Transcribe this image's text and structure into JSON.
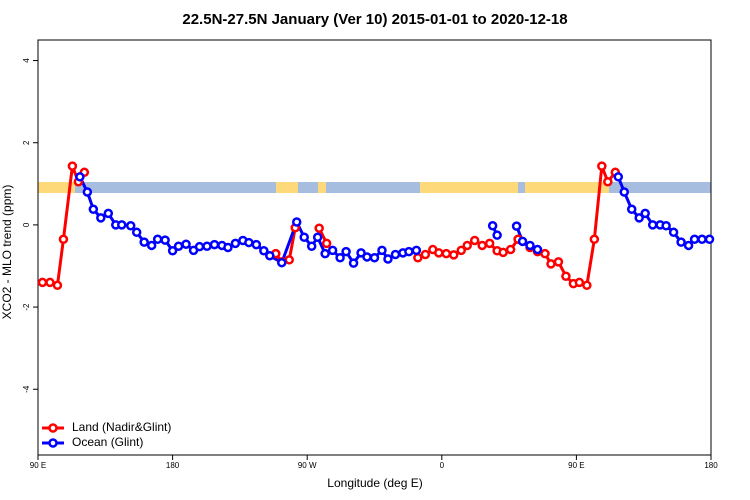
{
  "chart_data": {
    "type": "line",
    "title": "22.5N-27.5N January (Ver 10)   2015-01-01 to 2020-12-18",
    "x_label": "Longitude (deg E)",
    "y_label": "XCO2 - MLO trend (ppm)",
    "xlim": [
      90,
      540
    ],
    "xticks": [
      {
        "value": 90,
        "label": "90 E"
      },
      180,
      {
        "value": 270,
        "label": "90 W"
      },
      {
        "value": 360,
        "label": "0"
      },
      {
        "value": 450,
        "label": "90 E"
      },
      {
        "value": 540,
        "label": "180"
      }
    ],
    "ylim": [
      -5.6,
      4.5
    ],
    "yticks": [
      -4,
      -2,
      0,
      2,
      4
    ],
    "legend": "bottomleft",
    "series": [
      {
        "name": "Land (Nadir&Glint)",
        "color": "#ff0000",
        "x": [
          93,
          98,
          103,
          107,
          113,
          117,
          121,
          180,
          249,
          253,
          258,
          262,
          270,
          278,
          283,
          312,
          344,
          349,
          354,
          358,
          363,
          368,
          373,
          377,
          382,
          387,
          392,
          397,
          401,
          406,
          411,
          419,
          424,
          429,
          433,
          438,
          443,
          448,
          452,
          457,
          462,
          467,
          471,
          476
        ],
        "values": [
          -1.4,
          -1.4,
          -1.47,
          -0.35,
          1.43,
          1.05,
          1.28,
          null,
          -0.7,
          -0.9,
          -0.85,
          -0.07,
          null,
          -0.08,
          -0.45,
          null,
          -0.8,
          -0.72,
          -0.6,
          -0.68,
          -0.7,
          -0.73,
          -0.62,
          -0.5,
          -0.38,
          -0.5,
          -0.45,
          -0.63,
          -0.67,
          -0.6,
          -0.35,
          -0.55,
          -0.65,
          -0.7,
          -0.95,
          -0.9,
          -1.25,
          -1.43,
          -1.4,
          -1.47,
          -0.35,
          1.43,
          1.05,
          1.28
        ]
      },
      {
        "name": "Ocean (Glint)",
        "color": "#0000ff",
        "x": [
          118,
          123,
          127,
          132,
          137,
          142,
          146,
          152,
          156,
          161,
          166,
          170,
          175,
          180,
          184,
          189,
          194,
          198,
          203,
          208,
          213,
          217,
          222,
          227,
          231,
          236,
          241,
          245,
          253,
          263,
          268,
          273,
          277,
          282,
          287,
          292,
          296,
          301,
          306,
          310,
          315,
          320,
          324,
          329,
          334,
          338,
          343,
          366,
          394,
          397,
          405,
          410,
          414,
          419,
          424,
          453,
          478,
          482,
          487,
          492,
          496,
          501,
          506,
          510,
          515,
          520,
          525,
          529,
          534,
          539
        ],
        "values": [
          1.17,
          0.8,
          0.38,
          0.17,
          0.28,
          0.0,
          0.0,
          -0.02,
          -0.18,
          -0.42,
          -0.5,
          -0.35,
          -0.37,
          -0.63,
          -0.52,
          -0.47,
          -0.62,
          -0.53,
          -0.52,
          -0.48,
          -0.5,
          -0.55,
          -0.45,
          -0.38,
          -0.43,
          -0.48,
          -0.63,
          -0.75,
          -0.92,
          0.07,
          -0.3,
          -0.52,
          -0.3,
          -0.7,
          -0.62,
          -0.8,
          -0.65,
          -0.93,
          -0.68,
          -0.78,
          -0.8,
          -0.62,
          -0.83,
          -0.72,
          -0.68,
          -0.65,
          -0.62,
          null,
          -0.02,
          -0.25,
          null,
          -0.03,
          -0.4,
          -0.5,
          -0.6,
          null,
          1.17,
          0.8,
          0.38,
          0.17,
          0.28,
          0.0,
          0.0,
          -0.02,
          -0.18,
          -0.42,
          -0.5,
          -0.35,
          -0.35,
          -0.35
        ]
      }
    ]
  }
}
